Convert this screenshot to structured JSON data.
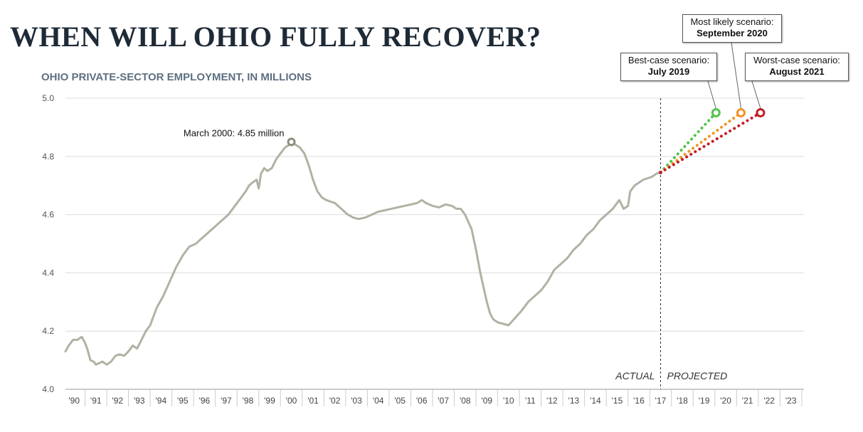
{
  "title": "WHEN WILL OHIO FULLY RECOVER?",
  "subtitle": "OHIO PRIVATE-SECTOR EMPLOYMENT, IN MILLIONS",
  "chart_data": {
    "type": "line",
    "ylim": [
      4.0,
      5.0
    ],
    "y_ticks": [
      "4.0",
      "4.2",
      "4.4",
      "4.6",
      "4.8",
      "5.0"
    ],
    "x_range": [
      1989.6,
      2023.6
    ],
    "x_tick_labels": [
      "'90",
      "'91",
      "'92",
      "'93",
      "'94",
      "'95",
      "'96",
      "'97",
      "'98",
      "'99",
      "'00",
      "'01",
      "'02",
      "'03",
      "'04",
      "'05",
      "'06",
      "'07",
      "'08",
      "'09",
      "'10",
      "'11",
      "'12",
      "'13",
      "'14",
      "'15",
      "'16",
      "'17",
      "'18",
      "'19",
      "'20",
      "'21",
      "'22",
      "'23"
    ],
    "grid": true,
    "divider_x": 2017.0,
    "divider_labels": {
      "left": "ACTUAL",
      "right": "PROJECTED"
    },
    "peak": {
      "x": 2000.0,
      "y": 4.85,
      "label": "March 2000: 4.85 million"
    },
    "series": [
      {
        "color": "#b1b1a4",
        "x": [
          1989.6,
          1989.75,
          1989.95,
          1990.15,
          1990.35,
          1990.5,
          1990.6,
          1990.75,
          1990.9,
          1991.0,
          1991.15,
          1991.3,
          1991.5,
          1991.7,
          1991.9,
          1992.1,
          1992.3,
          1992.5,
          1992.7,
          1992.9,
          1993.1,
          1993.3,
          1993.5,
          1993.8,
          1994.1,
          1994.4,
          1994.7,
          1995.0,
          1995.3,
          1995.6,
          1995.9,
          1996.2,
          1996.5,
          1996.8,
          1997.1,
          1997.4,
          1997.7,
          1997.9,
          1998.05,
          1998.2,
          1998.4,
          1998.5,
          1998.6,
          1998.75,
          1998.9,
          1999.1,
          1999.3,
          1999.5,
          1999.7,
          1999.9,
          2000.0,
          2000.2,
          2000.4,
          2000.6,
          2000.8,
          2001.0,
          2001.2,
          2001.4,
          2001.6,
          2001.8,
          2002.0,
          2002.3,
          2002.6,
          2002.85,
          2003.1,
          2003.4,
          2003.7,
          2004.0,
          2004.3,
          2004.6,
          2004.9,
          2005.2,
          2005.5,
          2005.8,
          2006.0,
          2006.2,
          2006.5,
          2006.8,
          2007.1,
          2007.4,
          2007.6,
          2007.8,
          2008.0,
          2008.3,
          2008.5,
          2008.7,
          2008.85,
          2009.0,
          2009.15,
          2009.3,
          2009.5,
          2009.75,
          2010.0,
          2010.3,
          2010.6,
          2010.9,
          2011.2,
          2011.5,
          2011.8,
          2012.1,
          2012.4,
          2012.7,
          2013.0,
          2013.3,
          2013.6,
          2013.9,
          2014.2,
          2014.5,
          2014.8,
          2015.0,
          2015.1,
          2015.3,
          2015.5,
          2015.6,
          2015.8,
          2016.0,
          2016.2,
          2016.4,
          2016.6,
          2016.8,
          2016.95
        ],
        "values": [
          4.13,
          4.15,
          4.17,
          4.17,
          4.18,
          4.16,
          4.14,
          4.1,
          4.095,
          4.085,
          4.09,
          4.095,
          4.085,
          4.095,
          4.115,
          4.12,
          4.115,
          4.13,
          4.15,
          4.14,
          4.17,
          4.2,
          4.22,
          4.28,
          4.32,
          4.37,
          4.42,
          4.46,
          4.49,
          4.5,
          4.52,
          4.54,
          4.56,
          4.58,
          4.6,
          4.63,
          4.66,
          4.68,
          4.7,
          4.71,
          4.72,
          4.69,
          4.74,
          4.76,
          4.75,
          4.76,
          4.79,
          4.81,
          4.83,
          4.84,
          4.85,
          4.84,
          4.83,
          4.81,
          4.77,
          4.72,
          4.68,
          4.66,
          4.65,
          4.645,
          4.64,
          4.62,
          4.6,
          4.59,
          4.585,
          4.59,
          4.6,
          4.61,
          4.615,
          4.62,
          4.625,
          4.63,
          4.635,
          4.64,
          4.65,
          4.64,
          4.63,
          4.625,
          4.635,
          4.63,
          4.62,
          4.62,
          4.6,
          4.55,
          4.48,
          4.4,
          4.35,
          4.3,
          4.26,
          4.24,
          4.23,
          4.225,
          4.22,
          4.245,
          4.27,
          4.3,
          4.32,
          4.34,
          4.37,
          4.41,
          4.43,
          4.45,
          4.48,
          4.5,
          4.53,
          4.55,
          4.58,
          4.6,
          4.62,
          4.64,
          4.65,
          4.62,
          4.63,
          4.68,
          4.7,
          4.71,
          4.72,
          4.725,
          4.73,
          4.74,
          4.745
        ]
      },
      {
        "color": "#52c34e",
        "x": [
          2017.0,
          2019.55
        ],
        "values": [
          4.745,
          4.95
        ],
        "endpoint_label": [
          "Best-case scenario:",
          "July 2019"
        ]
      },
      {
        "color": "#f29322",
        "x": [
          2017.0,
          2020.7
        ],
        "values": [
          4.745,
          4.95
        ],
        "endpoint_label": [
          "Most likely scenario:",
          "September 2020"
        ]
      },
      {
        "color": "#c21d27",
        "x": [
          2017.0,
          2021.6
        ],
        "values": [
          4.745,
          4.95
        ],
        "endpoint_label": [
          "Worst-case scenario:",
          "August 2021"
        ]
      }
    ]
  }
}
